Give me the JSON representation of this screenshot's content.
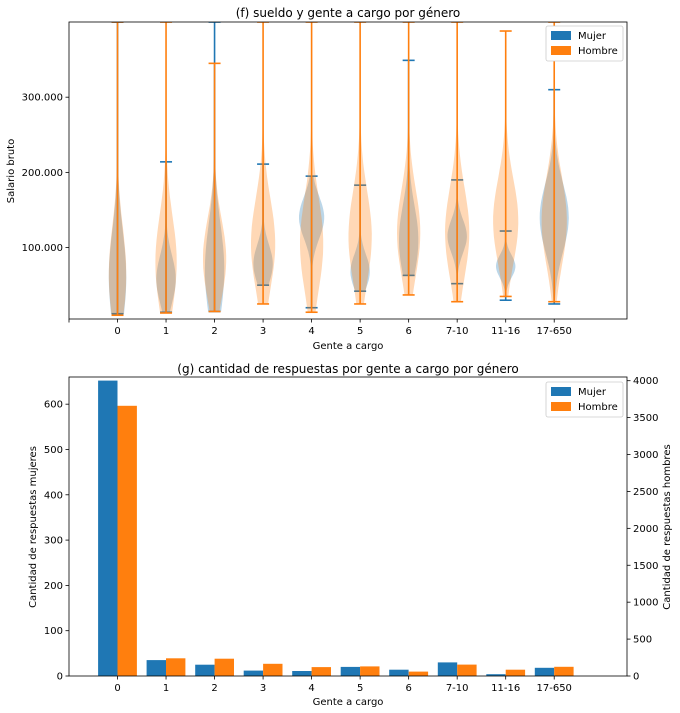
{
  "colors": {
    "mujer": "#1f77b4",
    "hombre": "#ff7f0e"
  },
  "chart_data": [
    {
      "type": "violin",
      "title": "(f) sueldo y gente a cargo por género",
      "xlabel": "Gente a cargo",
      "ylabel": "Salario bruto",
      "categories": [
        "0",
        "1",
        "2",
        "3",
        "4",
        "5",
        "6",
        "7-10",
        "11-16",
        "17-650"
      ],
      "yticks": [
        100000,
        200000,
        300000
      ],
      "ytick_labels": [
        "100.000",
        "200.000",
        "300.000"
      ],
      "ylim": [
        5000,
        400000
      ],
      "legend": [
        "Mujer",
        "Hombre"
      ],
      "series": [
        {
          "name": "Mujer",
          "min": [
            12000,
            14000,
            15000,
            50000,
            20000,
            42000,
            63000,
            52000,
            30000,
            25000
          ],
          "max": [
            400000,
            214000,
            400000,
            211000,
            195000,
            183000,
            349000,
            190000,
            122000,
            310000
          ],
          "center": [
            60000,
            58000,
            70000,
            78000,
            140000,
            68000,
            110000,
            115000,
            75000,
            140000
          ],
          "width": [
            0.18,
            0.2,
            0.2,
            0.2,
            0.26,
            0.2,
            0.2,
            0.2,
            0.2,
            0.3
          ]
        },
        {
          "name": "Hombre",
          "min": [
            10000,
            13000,
            15000,
            25000,
            14000,
            25000,
            37000,
            28000,
            35000,
            28000
          ],
          "max": [
            400000,
            400000,
            345000,
            400000,
            400000,
            400000,
            400000,
            400000,
            388000,
            400000
          ],
          "center": [
            65000,
            80000,
            85000,
            105000,
            105000,
            115000,
            120000,
            120000,
            135000,
            135000
          ],
          "width": [
            0.18,
            0.22,
            0.24,
            0.25,
            0.24,
            0.24,
            0.24,
            0.25,
            0.26,
            0.26
          ]
        }
      ]
    },
    {
      "type": "bar",
      "title": "(g) cantidad de respuestas por gente a cargo por género",
      "xlabel": "Gente a cargo",
      "ylabel_left": "Cantidad de respuestas mujeres",
      "ylabel_right": "Cantidad de respuestas hombres",
      "categories": [
        "0",
        "1",
        "2",
        "3",
        "4",
        "5",
        "6",
        "7-10",
        "11-16",
        "17-650"
      ],
      "yticks_left": [
        0,
        100,
        200,
        300,
        400,
        500,
        600
      ],
      "yticks_right": [
        0,
        500,
        1000,
        1500,
        2000,
        2500,
        3000,
        3500,
        4000
      ],
      "ylim_left": [
        0,
        660
      ],
      "ylim_right": [
        0,
        4050
      ],
      "legend": [
        "Mujer",
        "Hombre"
      ],
      "series": [
        {
          "name": "Mujer",
          "axis": "left",
          "values": [
            652,
            35,
            25,
            12,
            11,
            20,
            14,
            30,
            4,
            18
          ]
        },
        {
          "name": "Hombre",
          "axis": "right",
          "values": [
            3660,
            240,
            235,
            165,
            120,
            130,
            60,
            155,
            85,
            125
          ]
        }
      ]
    }
  ]
}
